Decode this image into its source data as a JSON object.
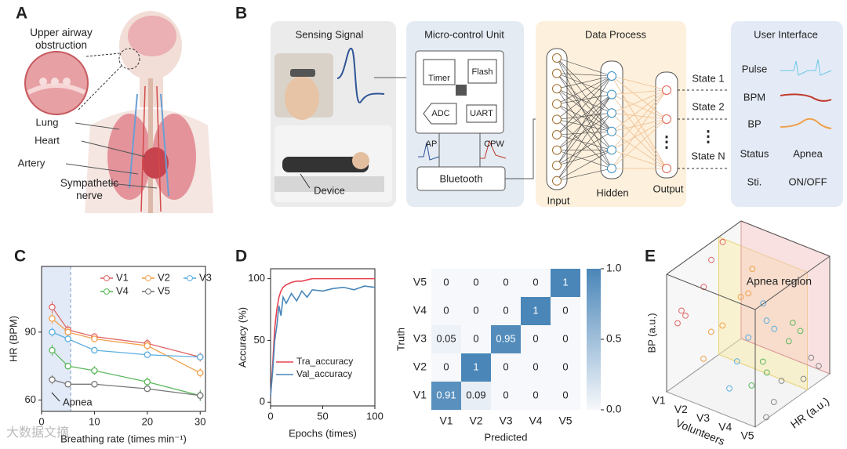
{
  "panel_labels": [
    "A",
    "B",
    "C",
    "D",
    "E"
  ],
  "anatomy": {
    "labels": [
      "Upper airway obstruction",
      "Lung",
      "Heart",
      "Artery",
      "Sympathetic nerve"
    ]
  },
  "system": {
    "sensing": {
      "title": "Sensing Signal",
      "device": "Device"
    },
    "mcu": {
      "title": "Micro-control Unit",
      "modules": [
        "Timer",
        "Flash",
        "ADC",
        "UART"
      ],
      "signals": [
        "AP",
        "CPW"
      ],
      "bluetooth": "Bluetooth"
    },
    "process": {
      "title": "Data Process",
      "layers": [
        "Input",
        "Hidden",
        "Output"
      ],
      "states": [
        "State 1",
        "State 2",
        "State N"
      ]
    },
    "ui": {
      "title": "User Interface",
      "rows": [
        "Pulse",
        "BPM",
        "BP",
        "Status",
        "Sti."
      ],
      "values": [
        "Apnea",
        "ON/OFF"
      ]
    }
  },
  "watermark": "大数据文摘",
  "chart_data": [
    {
      "type": "line",
      "x": [
        2,
        5,
        10,
        20,
        30
      ],
      "xlim": [
        0,
        31
      ],
      "xticks": [
        0,
        10,
        20,
        30
      ],
      "ylim": [
        55,
        119
      ],
      "yticks": [
        60,
        90
      ],
      "x_label": "Breathing rate (times min⁻¹)",
      "y_label": "HR (BPM)",
      "markers": true,
      "shaded_region": [
        0,
        5.5
      ],
      "annotation": "Apnea",
      "series": [
        {
          "name": "V1",
          "color": "#e06666",
          "values": [
            101,
            91,
            88,
            85,
            79
          ],
          "errors": [
            2.5,
            2,
            1.5,
            2,
            2
          ]
        },
        {
          "name": "V2",
          "color": "#f0a04b",
          "values": [
            96,
            90,
            87,
            84,
            72
          ],
          "errors": [
            2.5,
            2,
            1.5,
            2,
            2
          ]
        },
        {
          "name": "V3",
          "color": "#5aaee0",
          "values": [
            90,
            87,
            82,
            80,
            79
          ],
          "errors": [
            2,
            1.5,
            1.5,
            1.5,
            1.5
          ]
        },
        {
          "name": "V4",
          "color": "#5cb85c",
          "values": [
            82,
            75,
            73,
            68,
            62
          ],
          "errors": [
            2.5,
            1.5,
            2,
            2,
            2.5
          ]
        },
        {
          "name": "V5",
          "color": "#777777",
          "values": [
            69,
            67,
            67,
            65,
            62
          ],
          "errors": [
            2,
            1,
            1,
            1,
            2
          ]
        }
      ]
    },
    {
      "type": "line",
      "x": [
        0,
        2,
        4,
        6,
        8,
        10,
        12,
        15,
        20,
        25,
        30,
        35,
        40,
        50,
        60,
        70,
        80,
        90,
        100
      ],
      "xlim": [
        0,
        100
      ],
      "xticks": [
        0,
        50,
        100
      ],
      "ylim": [
        -3,
        108
      ],
      "yticks": [
        0,
        50,
        100
      ],
      "x_label": "Epochs (times)",
      "y_label": "Accuracy (%)",
      "series": [
        {
          "name": "Tra_accuracy",
          "color": "#e8424f",
          "values": [
            5,
            30,
            60,
            75,
            85,
            90,
            93,
            95,
            97,
            98,
            98,
            99,
            100,
            100,
            100,
            100,
            100,
            100,
            100
          ]
        },
        {
          "name": "Val_accuracy",
          "color": "#4a86b8",
          "values": [
            5,
            25,
            50,
            62,
            78,
            70,
            85,
            80,
            88,
            82,
            90,
            85,
            91,
            90,
            92,
            93,
            91,
            94,
            93
          ]
        }
      ]
    },
    {
      "type": "heatmap",
      "x_categories": [
        "V1",
        "V2",
        "V3",
        "V4",
        "V5"
      ],
      "y_categories": [
        "V1",
        "V2",
        "V3",
        "V4",
        "V5"
      ],
      "x_label": "Predicted",
      "y_label": "Truth",
      "clim": [
        0,
        1
      ],
      "values": [
        [
          0.91,
          0.09,
          0,
          0,
          0
        ],
        [
          0,
          1,
          0,
          0,
          0
        ],
        [
          0.05,
          0,
          0.95,
          0,
          0
        ],
        [
          0,
          0,
          0,
          1,
          0
        ],
        [
          0,
          0,
          0,
          0,
          1
        ]
      ],
      "colorbar_ticks": [
        {
          "value": 0,
          "label": "0.0"
        },
        0.5,
        {
          "value": 1,
          "label": "1.0"
        }
      ]
    },
    {
      "type": "scatter3d",
      "categories": [
        "V1",
        "V2",
        "V3",
        "V4",
        "V5"
      ],
      "x_label": "Volunteers",
      "y_label": "HR (a.u.)",
      "z_label": "BP (a.u.)",
      "annotation": "Apnea region",
      "region_hr": [
        0.7,
        1
      ],
      "series": [
        {
          "color": "#e06666",
          "hr": [
            0.1,
            0.2,
            0.3,
            0.45,
            0.6,
            0.8
          ],
          "bp": [
            0.55,
            0.6,
            0.5,
            0.7,
            0.85,
            0.9
          ]
        },
        {
          "color": "#f0a04b",
          "hr": [
            0.15,
            0.3,
            0.5,
            0.65,
            0.8,
            0.9
          ],
          "bp": [
            0.3,
            0.45,
            0.4,
            0.6,
            0.55,
            0.7
          ]
        },
        {
          "color": "#5aaee0",
          "hr": [
            0.2,
            0.35,
            0.55,
            0.7,
            0.85,
            0.75
          ],
          "bp": [
            0.1,
            0.25,
            0.35,
            0.45,
            0.3,
            0.55
          ]
        },
        {
          "color": "#5cb85c",
          "hr": [
            0.2,
            0.4,
            0.5,
            0.7,
            0.8,
            0.95
          ],
          "bp": [
            0.2,
            0.3,
            0.15,
            0.35,
            0.45,
            0.3
          ]
        },
        {
          "color": "#888888",
          "hr": [
            0.1,
            0.25,
            0.4,
            0.6,
            0.75,
            0.9
          ],
          "bp": [
            0.05,
            0.1,
            0.2,
            0.15,
            0.25,
            0.1
          ]
        }
      ]
    }
  ]
}
